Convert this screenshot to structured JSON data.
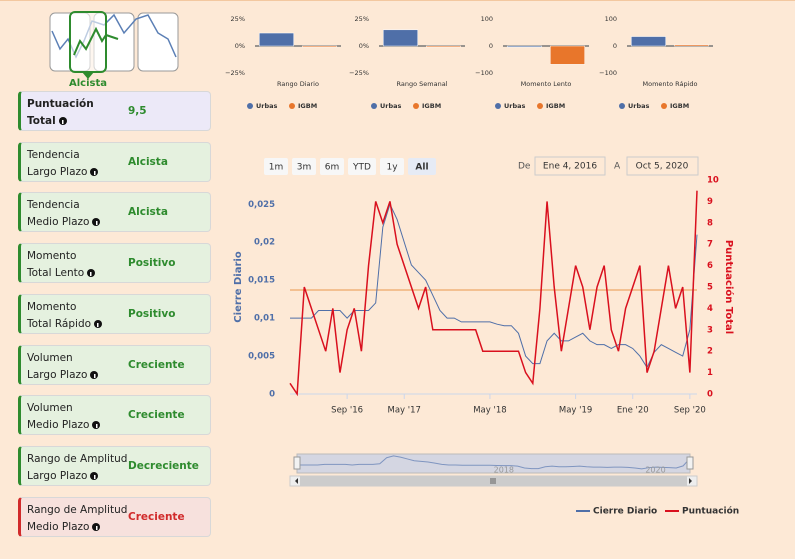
{
  "sidebar": {
    "icon_label": "Alcista",
    "cards": [
      {
        "label": [
          "Puntuación",
          "Total"
        ],
        "value": "9,5",
        "color": "#2e8b2e",
        "bold": true
      },
      {
        "label": [
          "Tendencia",
          "Largo Plazo"
        ],
        "value": "Alcista",
        "color": "#2e8b2e"
      },
      {
        "label": [
          "Tendencia",
          "Medio Plazo"
        ],
        "value": "Alcista",
        "color": "#2e8b2e"
      },
      {
        "label": [
          "Momento",
          "Total Lento"
        ],
        "value": "Positivo",
        "color": "#2e8b2e"
      },
      {
        "label": [
          "Momento",
          "Total Rápido"
        ],
        "value": "Positivo",
        "color": "#2e8b2e"
      },
      {
        "label": [
          "Volumen",
          "Largo Plazo"
        ],
        "value": "Creciente",
        "color": "#2e8b2e"
      },
      {
        "label": [
          "Volumen",
          "Medio Plazo"
        ],
        "value": "Creciente",
        "color": "#2e8b2e"
      },
      {
        "label": [
          "Rango de Amplitud",
          "Largo Plazo"
        ],
        "value": "Decreciente",
        "color": "#2e8b2e"
      },
      {
        "label": [
          "Rango de Amplitud",
          "Medio Plazo"
        ],
        "value": "Creciente",
        "color": "#d12b2b"
      }
    ]
  },
  "range_selector": {
    "buttons": [
      "1m",
      "3m",
      "6m",
      "YTD",
      "1y",
      "All"
    ],
    "selected": 5,
    "from_label": "De",
    "from": "Ene 4, 2016",
    "to_label": "A",
    "to": "Oct 5, 2020"
  },
  "navigator": {
    "labels": [
      {
        "value": "2018-07",
        "label": "2018"
      },
      {
        "value": "2020-05",
        "label": "2020"
      }
    ]
  },
  "chart_data": [
    {
      "type": "bar",
      "xlabel": "Rango Diario",
      "categories": [
        "Urbas",
        "IGBM"
      ],
      "colors": [
        "#4f6fa8",
        "#e8762b"
      ],
      "values": [
        12,
        -1
      ],
      "ylim": [
        -25,
        25
      ],
      "yticks": [
        {
          "value": 25,
          "label": "25%"
        },
        {
          "value": 0,
          "label": "0%"
        },
        {
          "value": -25,
          "label": "−25%"
        }
      ]
    },
    {
      "type": "bar",
      "xlabel": "Rango Semanal",
      "categories": [
        "Urbas",
        "IGBM"
      ],
      "colors": [
        "#4f6fa8",
        "#e8762b"
      ],
      "values": [
        15,
        -1
      ],
      "ylim": [
        -25,
        25
      ],
      "yticks": [
        {
          "value": 25,
          "label": "25%"
        },
        {
          "value": 0,
          "label": "0%"
        },
        {
          "value": -25,
          "label": "−25%"
        }
      ]
    },
    {
      "type": "bar",
      "xlabel": "Momento Lento",
      "categories": [
        "Urbas",
        "IGBM"
      ],
      "colors": [
        "#4f6fa8",
        "#e8762b"
      ],
      "values": [
        -4,
        -68
      ],
      "ylim": [
        -100,
        100
      ],
      "yticks": [
        100,
        0,
        {
          "value": -100,
          "label": "−100"
        }
      ]
    },
    {
      "type": "bar",
      "xlabel": "Momento Rápido",
      "categories": [
        "Urbas",
        "IGBM"
      ],
      "colors": [
        "#4f6fa8",
        "#e8762b"
      ],
      "values": [
        35,
        5
      ],
      "ylim": [
        -100,
        100
      ],
      "yticks": [
        100,
        0,
        {
          "value": -100,
          "label": "−100"
        }
      ]
    },
    {
      "type": "line",
      "ylabel": "Cierre Diario",
      "y2label": "Puntuación Total",
      "x": [
        "2016-01",
        "2016-02",
        "2016-03",
        "2016-04",
        "2016-05",
        "2016-06",
        "2016-07",
        "2016-08",
        "2016-09",
        "2016-10",
        "2016-11",
        "2016-12",
        "2017-01",
        "2017-02",
        "2017-03",
        "2017-04",
        "2017-05",
        "2017-06",
        "2017-07",
        "2017-08",
        "2017-09",
        "2017-10",
        "2017-11",
        "2017-12",
        "2018-01",
        "2018-02",
        "2018-03",
        "2018-04",
        "2018-05",
        "2018-06",
        "2018-07",
        "2018-08",
        "2018-09",
        "2018-10",
        "2018-11",
        "2018-12",
        "2019-01",
        "2019-02",
        "2019-03",
        "2019-04",
        "2019-05",
        "2019-06",
        "2019-07",
        "2019-08",
        "2019-09",
        "2019-10",
        "2019-11",
        "2019-12",
        "2020-01",
        "2020-02",
        "2020-03",
        "2020-04",
        "2020-05",
        "2020-06",
        "2020-07",
        "2020-08",
        "2020-09",
        "2020-10"
      ],
      "series": [
        {
          "name": "Cierre Diario",
          "color": "#4f6fa8",
          "axis": "y",
          "values": [
            0.01,
            0.01,
            0.01,
            0.01,
            0.011,
            0.011,
            0.011,
            0.011,
            0.01,
            0.011,
            0.011,
            0.011,
            0.012,
            0.022,
            0.025,
            0.023,
            0.02,
            0.017,
            0.016,
            0.015,
            0.013,
            0.011,
            0.01,
            0.01,
            0.0095,
            0.0095,
            0.0095,
            0.0095,
            0.0095,
            0.0092,
            0.009,
            0.009,
            0.008,
            0.005,
            0.004,
            0.004,
            0.007,
            0.008,
            0.007,
            0.007,
            0.0075,
            0.008,
            0.007,
            0.0065,
            0.0065,
            0.006,
            0.0065,
            0.0065,
            0.006,
            0.005,
            0.0035,
            0.0055,
            0.0065,
            0.006,
            0.0055,
            0.005,
            0.0085,
            0.021
          ]
        },
        {
          "name": "Puntuación",
          "color": "#d9101e",
          "axis": "y2",
          "values": [
            0.5,
            0,
            5,
            4,
            3,
            2,
            4,
            1,
            3,
            4,
            2,
            6,
            9,
            8,
            9,
            7,
            6,
            5,
            4,
            5,
            3,
            3,
            3,
            3,
            3,
            3,
            3,
            2,
            2,
            2,
            2,
            2,
            2,
            1,
            0.5,
            4,
            9,
            5,
            2,
            4,
            6,
            5,
            3,
            5,
            6,
            3,
            2,
            4,
            5,
            6,
            1,
            2,
            4,
            6,
            4,
            5,
            1,
            9.5
          ]
        }
      ],
      "xlim": [
        "2016-01",
        "2020-10"
      ],
      "xticks": [
        {
          "value": "2016-09",
          "label": "Sep '16"
        },
        {
          "value": "2017-05",
          "label": "May '17"
        },
        {
          "value": "2018-05",
          "label": "May '18"
        },
        {
          "value": "2019-05",
          "label": "May '19"
        },
        {
          "value": "2020-01",
          "label": "Ene '20"
        },
        {
          "value": "2020-09",
          "label": "Sep '20"
        }
      ],
      "ylim": [
        0,
        0.0282
      ],
      "yticks": [
        0,
        {
          "value": 0.005,
          "label": "0,005"
        },
        {
          "value": 0.01,
          "label": "0,01"
        },
        {
          "value": 0.015,
          "label": "0,015"
        },
        {
          "value": 0.02,
          "label": "0,02"
        },
        {
          "value": 0.025,
          "label": "0,025"
        }
      ],
      "y2lim": [
        0,
        10
      ],
      "y2ticks": [
        0,
        1,
        2,
        3,
        4,
        5,
        6,
        7,
        8,
        9,
        10
      ],
      "plot_lines": [
        {
          "value": 0.0137,
          "color": "#f0b27a"
        }
      ]
    }
  ]
}
